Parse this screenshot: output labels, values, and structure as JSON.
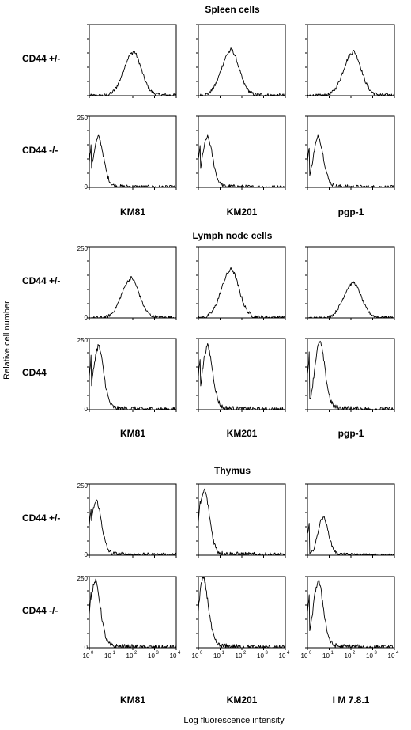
{
  "chart_data": {
    "type": "histogram-panels",
    "ylabel": "Relative cell number",
    "xlabel": "Log fluorescence intensity",
    "xscale": "log",
    "xlim": [
      1,
      10000
    ],
    "xticks": [
      "10",
      "0",
      "10",
      "1",
      "10",
      "2",
      "10",
      "3",
      "10",
      "4"
    ],
    "xtick_items": [
      {
        "base": "10",
        "exp": "0"
      },
      {
        "base": "10",
        "exp": "1"
      },
      {
        "base": "10",
        "exp": "2"
      },
      {
        "base": "10",
        "exp": "3"
      },
      {
        "base": "10",
        "exp": "4"
      }
    ],
    "ylim": [
      0,
      250
    ],
    "sections": [
      {
        "title": "Spleen cells",
        "antibodies": [
          "KM81",
          "KM201",
          "pgp-1"
        ],
        "rows": [
          {
            "label": "CD44 +/-",
            "yticks": [
              "",
              ""
            ],
            "peaks": [
              {
                "center": 100,
                "height": 150
              },
              {
                "center": 30,
                "height": 155
              },
              {
                "center": 120,
                "height": 150
              }
            ]
          },
          {
            "label": "CD44 -/-",
            "yticks": [
              "250",
              "0"
            ],
            "peaks": [
              {
                "center": 2.5,
                "height": 170
              },
              {
                "center": 2.5,
                "height": 170
              },
              {
                "center": 3,
                "height": 170
              }
            ]
          }
        ]
      },
      {
        "title": "Lymph node cells",
        "antibodies": [
          "KM81",
          "KM201",
          "pgp-1"
        ],
        "rows": [
          {
            "label": "CD44 +/-",
            "yticks": [
              "250",
              "0"
            ],
            "peaks": [
              {
                "center": 80,
                "height": 135
              },
              {
                "center": 30,
                "height": 165
              },
              {
                "center": 120,
                "height": 120
              }
            ]
          },
          {
            "label": "CD44",
            "yticks": [
              "250",
              "0"
            ],
            "peaks": [
              {
                "center": 2.5,
                "height": 215
              },
              {
                "center": 2.5,
                "height": 215
              },
              {
                "center": 3.5,
                "height": 230
              }
            ]
          }
        ]
      },
      {
        "title": "Thymus",
        "antibodies": [
          "KM81",
          "KM201",
          "I M 7.8.1"
        ],
        "rows": [
          {
            "label": "CD44 +/-",
            "yticks": [
              "250",
              "0"
            ],
            "peaks": [
              {
                "center": 2,
                "height": 185
              },
              {
                "center": 1.8,
                "height": 220
              },
              {
                "center": 5,
                "height": 130
              }
            ]
          },
          {
            "label": "CD44 -/-",
            "yticks": [
              "250",
              "0"
            ],
            "peaks": [
              {
                "center": 1.8,
                "height": 225
              },
              {
                "center": 1.6,
                "height": 235
              },
              {
                "center": 3,
                "height": 225
              }
            ]
          }
        ]
      }
    ]
  }
}
